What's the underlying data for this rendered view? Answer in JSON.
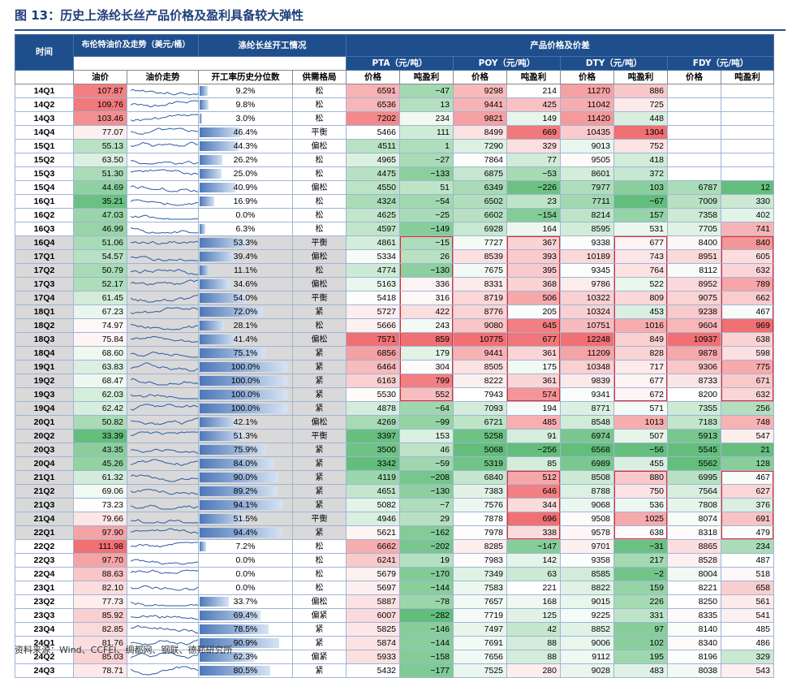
{
  "title": "图 13：历史上涤纶长丝产品价格及盈利具备较大弹性",
  "source": "资料来源：Wind、CCFEI、绸都网、钢联、德邦研究所",
  "headers": {
    "period": "时间",
    "brent_group": "布伦特油价及走势（美元/桶）",
    "operating_group": "涤纶长丝开工情况",
    "products_group": "产品价格及价差",
    "oil_price": "油价",
    "oil_trend": "油价走势",
    "operating_pct": "开工率历史分位数",
    "supply_demand": "供需格局",
    "pta": "PTA（元/吨）",
    "poy": "POY（元/吨）",
    "dty": "DTY（元/吨）",
    "fdy": "FDY（元/吨）",
    "price": "价格",
    "profit": "吨盈利"
  },
  "rows": [
    {
      "period": "14Q1",
      "oil": "107.87",
      "op": "9.2%",
      "sd": "松",
      "pta": "6591",
      "pta_p": "−47",
      "poy": "9298",
      "poy_p": "214",
      "dty": "11270",
      "dty_p": "886",
      "fdy": "",
      "fdy_p": ""
    },
    {
      "period": "14Q2",
      "oil": "109.76",
      "op": "9.8%",
      "sd": "松",
      "pta": "6536",
      "pta_p": "13",
      "poy": "9441",
      "poy_p": "425",
      "dty": "11042",
      "dty_p": "725",
      "fdy": "",
      "fdy_p": ""
    },
    {
      "period": "14Q3",
      "oil": "103.46",
      "op": "3.0%",
      "sd": "松",
      "pta": "7202",
      "pta_p": "234",
      "poy": "9821",
      "poy_p": "149",
      "dty": "11420",
      "dty_p": "448",
      "fdy": "",
      "fdy_p": ""
    },
    {
      "period": "14Q4",
      "oil": "77.07",
      "op": "46.4%",
      "sd": "平衡",
      "pta": "5466",
      "pta_p": "111",
      "poy": "8499",
      "poy_p": "669",
      "dty": "10435",
      "dty_p": "1304",
      "fdy": "",
      "fdy_p": ""
    },
    {
      "period": "15Q1",
      "oil": "55.13",
      "op": "44.3%",
      "sd": "偏松",
      "pta": "4511",
      "pta_p": "1",
      "poy": "7290",
      "poy_p": "329",
      "dty": "9013",
      "dty_p": "752",
      "fdy": "",
      "fdy_p": ""
    },
    {
      "period": "15Q2",
      "oil": "63.50",
      "op": "26.2%",
      "sd": "松",
      "pta": "4965",
      "pta_p": "−27",
      "poy": "7864",
      "poy_p": "77",
      "dty": "9505",
      "dty_p": "418",
      "fdy": "",
      "fdy_p": ""
    },
    {
      "period": "15Q3",
      "oil": "51.30",
      "op": "25.0%",
      "sd": "松",
      "pta": "4475",
      "pta_p": "−133",
      "poy": "6875",
      "poy_p": "−53",
      "dty": "8601",
      "dty_p": "372",
      "fdy": "",
      "fdy_p": ""
    },
    {
      "period": "15Q4",
      "oil": "44.69",
      "op": "40.9%",
      "sd": "偏松",
      "pta": "4550",
      "pta_p": "51",
      "poy": "6349",
      "poy_p": "−226",
      "dty": "7977",
      "dty_p": "103",
      "fdy": "6787",
      "fdy_p": "12"
    },
    {
      "period": "16Q1",
      "oil": "35.21",
      "op": "16.9%",
      "sd": "松",
      "pta": "4324",
      "pta_p": "−54",
      "poy": "6502",
      "poy_p": "23",
      "dty": "7711",
      "dty_p": "−67",
      "fdy": "7009",
      "fdy_p": "330"
    },
    {
      "period": "16Q2",
      "oil": "47.03",
      "op": "0.0%",
      "sd": "松",
      "pta": "4625",
      "pta_p": "−25",
      "poy": "6602",
      "poy_p": "−154",
      "dty": "8214",
      "dty_p": "157",
      "fdy": "7358",
      "fdy_p": "402"
    },
    {
      "period": "16Q3",
      "oil": "46.99",
      "op": "6.3%",
      "sd": "松",
      "pta": "4597",
      "pta_p": "−149",
      "poy": "6928",
      "poy_p": "164",
      "dty": "8595",
      "dty_p": "531",
      "fdy": "7705",
      "fdy_p": "741"
    },
    {
      "period": "16Q4",
      "oil": "51.06",
      "op": "53.3%",
      "sd": "平衡",
      "pta": "4861",
      "pta_p": "−15",
      "poy": "7727",
      "poy_p": "367",
      "dty": "9338",
      "dty_p": "677",
      "fdy": "8400",
      "fdy_p": "840"
    },
    {
      "period": "17Q1",
      "oil": "54.57",
      "op": "39.4%",
      "sd": "偏松",
      "pta": "5334",
      "pta_p": "26",
      "poy": "8539",
      "poy_p": "393",
      "dty": "10189",
      "dty_p": "743",
      "fdy": "8951",
      "fdy_p": "605"
    },
    {
      "period": "17Q2",
      "oil": "50.79",
      "op": "11.1%",
      "sd": "松",
      "pta": "4774",
      "pta_p": "−130",
      "poy": "7675",
      "poy_p": "395",
      "dty": "9345",
      "dty_p": "764",
      "fdy": "8112",
      "fdy_p": "632"
    },
    {
      "period": "17Q3",
      "oil": "52.17",
      "op": "34.6%",
      "sd": "偏松",
      "pta": "5163",
      "pta_p": "336",
      "poy": "8331",
      "poy_p": "368",
      "dty": "9786",
      "dty_p": "522",
      "fdy": "8952",
      "fdy_p": "789"
    },
    {
      "period": "17Q4",
      "oil": "61.45",
      "op": "54.0%",
      "sd": "平衡",
      "pta": "5418",
      "pta_p": "316",
      "poy": "8719",
      "poy_p": "506",
      "dty": "10322",
      "dty_p": "809",
      "fdy": "9075",
      "fdy_p": "662"
    },
    {
      "period": "18Q1",
      "oil": "67.23",
      "op": "72.0%",
      "sd": "紧",
      "pta": "5727",
      "pta_p": "422",
      "poy": "8776",
      "poy_p": "205",
      "dty": "10324",
      "dty_p": "453",
      "fdy": "9238",
      "fdy_p": "467"
    },
    {
      "period": "18Q2",
      "oil": "74.97",
      "op": "28.1%",
      "sd": "松",
      "pta": "5666",
      "pta_p": "243",
      "poy": "9080",
      "poy_p": "645",
      "dty": "10751",
      "dty_p": "1016",
      "fdy": "9604",
      "fdy_p": "969"
    },
    {
      "period": "18Q3",
      "oil": "75.84",
      "op": "41.4%",
      "sd": "偏松",
      "pta": "7571",
      "pta_p": "859",
      "poy": "10775",
      "poy_p": "677",
      "dty": "12248",
      "dty_p": "849",
      "fdy": "10937",
      "fdy_p": "638"
    },
    {
      "period": "18Q4",
      "oil": "68.60",
      "op": "75.1%",
      "sd": "紧",
      "pta": "6856",
      "pta_p": "179",
      "poy": "9441",
      "poy_p": "361",
      "dty": "11209",
      "dty_p": "828",
      "fdy": "9878",
      "fdy_p": "598"
    },
    {
      "period": "19Q1",
      "oil": "63.83",
      "op": "100.0%",
      "sd": "紧",
      "pta": "6464",
      "pta_p": "304",
      "poy": "8505",
      "poy_p": "175",
      "dty": "10348",
      "dty_p": "717",
      "fdy": "9306",
      "fdy_p": "775"
    },
    {
      "period": "19Q2",
      "oil": "68.47",
      "op": "100.0%",
      "sd": "紧",
      "pta": "6163",
      "pta_p": "799",
      "poy": "8222",
      "poy_p": "361",
      "dty": "9839",
      "dty_p": "677",
      "fdy": "8733",
      "fdy_p": "671"
    },
    {
      "period": "19Q3",
      "oil": "62.03",
      "op": "100.0%",
      "sd": "紧",
      "pta": "5530",
      "pta_p": "552",
      "poy": "7943",
      "poy_p": "574",
      "dty": "9341",
      "dty_p": "672",
      "fdy": "8200",
      "fdy_p": "632"
    },
    {
      "period": "19Q4",
      "oil": "62.42",
      "op": "100.0%",
      "sd": "紧",
      "pta": "4878",
      "pta_p": "−64",
      "poy": "7093",
      "poy_p": "194",
      "dty": "8771",
      "dty_p": "571",
      "fdy": "7355",
      "fdy_p": "256"
    },
    {
      "period": "20Q1",
      "oil": "50.82",
      "op": "42.1%",
      "sd": "偏松",
      "pta": "4269",
      "pta_p": "−99",
      "poy": "6721",
      "poy_p": "485",
      "dty": "8548",
      "dty_p": "1013",
      "fdy": "7183",
      "fdy_p": "748"
    },
    {
      "period": "20Q2",
      "oil": "33.39",
      "op": "51.3%",
      "sd": "平衡",
      "pta": "3397",
      "pta_p": "153",
      "poy": "5258",
      "poy_p": "91",
      "dty": "6974",
      "dty_p": "507",
      "fdy": "5913",
      "fdy_p": "547"
    },
    {
      "period": "20Q3",
      "oil": "43.35",
      "op": "75.9%",
      "sd": "紧",
      "pta": "3500",
      "pta_p": "46",
      "poy": "5068",
      "poy_p": "−256",
      "dty": "6568",
      "dty_p": "−56",
      "fdy": "5545",
      "fdy_p": "21"
    },
    {
      "period": "20Q4",
      "oil": "45.26",
      "op": "84.0%",
      "sd": "紧",
      "pta": "3342",
      "pta_p": "−59",
      "poy": "5319",
      "poy_p": "85",
      "dty": "6989",
      "dty_p": "455",
      "fdy": "5562",
      "fdy_p": "128"
    },
    {
      "period": "21Q1",
      "oil": "61.32",
      "op": "90.0%",
      "sd": "紧",
      "pta": "4119",
      "pta_p": "−208",
      "poy": "6840",
      "poy_p": "512",
      "dty": "8508",
      "dty_p": "880",
      "fdy": "6995",
      "fdy_p": "467"
    },
    {
      "period": "21Q2",
      "oil": "69.06",
      "op": "89.2%",
      "sd": "紧",
      "pta": "4651",
      "pta_p": "−130",
      "poy": "7383",
      "poy_p": "646",
      "dty": "8788",
      "dty_p": "750",
      "fdy": "7564",
      "fdy_p": "627"
    },
    {
      "period": "21Q3",
      "oil": "73.23",
      "op": "94.1%",
      "sd": "紧",
      "pta": "5082",
      "pta_p": "−7",
      "poy": "7576",
      "poy_p": "344",
      "dty": "9068",
      "dty_p": "536",
      "fdy": "7808",
      "fdy_p": "376"
    },
    {
      "period": "21Q4",
      "oil": "79.66",
      "op": "51.5%",
      "sd": "平衡",
      "pta": "4946",
      "pta_p": "29",
      "poy": "7878",
      "poy_p": "696",
      "dty": "9508",
      "dty_p": "1025",
      "fdy": "8074",
      "fdy_p": "691"
    },
    {
      "period": "22Q1",
      "oil": "97.90",
      "op": "94.4%",
      "sd": "紧",
      "pta": "5621",
      "pta_p": "−162",
      "poy": "7978",
      "poy_p": "338",
      "dty": "9578",
      "dty_p": "638",
      "fdy": "8318",
      "fdy_p": "479"
    },
    {
      "period": "22Q2",
      "oil": "111.98",
      "op": "7.2%",
      "sd": "松",
      "pta": "6662",
      "pta_p": "−202",
      "poy": "8285",
      "poy_p": "−147",
      "dty": "9701",
      "dty_p": "−31",
      "fdy": "8865",
      "fdy_p": "234"
    },
    {
      "period": "22Q3",
      "oil": "97.70",
      "op": "0.0%",
      "sd": "松",
      "pta": "6241",
      "pta_p": "19",
      "poy": "7983",
      "poy_p": "142",
      "dty": "9358",
      "dty_p": "217",
      "fdy": "8528",
      "fdy_p": "487"
    },
    {
      "period": "22Q4",
      "oil": "88.63",
      "op": "0.0%",
      "sd": "松",
      "pta": "5679",
      "pta_p": "−170",
      "poy": "7349",
      "poy_p": "63",
      "dty": "8585",
      "dty_p": "−2",
      "fdy": "8004",
      "fdy_p": "518"
    },
    {
      "period": "23Q1",
      "oil": "82.10",
      "op": "0.0%",
      "sd": "松",
      "pta": "5697",
      "pta_p": "−144",
      "poy": "7583",
      "poy_p": "221",
      "dty": "8822",
      "dty_p": "159",
      "fdy": "8221",
      "fdy_p": "658"
    },
    {
      "period": "23Q2",
      "oil": "77.73",
      "op": "33.7%",
      "sd": "偏松",
      "pta": "5887",
      "pta_p": "−78",
      "poy": "7657",
      "poy_p": "168",
      "dty": "9015",
      "dty_p": "226",
      "fdy": "8250",
      "fdy_p": "561"
    },
    {
      "period": "23Q3",
      "oil": "85.92",
      "op": "69.4%",
      "sd": "偏紧",
      "pta": "6007",
      "pta_p": "−282",
      "poy": "7719",
      "poy_p": "125",
      "dty": "9225",
      "dty_p": "331",
      "fdy": "8335",
      "fdy_p": "541"
    },
    {
      "period": "23Q4",
      "oil": "82.85",
      "op": "78.5%",
      "sd": "紧",
      "pta": "5825",
      "pta_p": "−146",
      "poy": "7497",
      "poy_p": "42",
      "dty": "8852",
      "dty_p": "97",
      "fdy": "8140",
      "fdy_p": "485"
    },
    {
      "period": "24Q1",
      "oil": "81.76",
      "op": "90.9%",
      "sd": "紧",
      "pta": "5874",
      "pta_p": "−144",
      "poy": "7691",
      "poy_p": "88",
      "dty": "9006",
      "dty_p": "102",
      "fdy": "8340",
      "fdy_p": "486"
    },
    {
      "period": "24Q2",
      "oil": "85.03",
      "op": "62.3%",
      "sd": "偏紧",
      "pta": "5933",
      "pta_p": "−158",
      "poy": "7656",
      "poy_p": "88",
      "dty": "9112",
      "dty_p": "195",
      "fdy": "8196",
      "fdy_p": "329"
    },
    {
      "period": "24Q3",
      "oil": "78.71",
      "op": "80.5%",
      "sd": "紧",
      "pta": "5432",
      "pta_p": "−177",
      "poy": "7525",
      "poy_p": "280",
      "dty": "9028",
      "dty_p": "483",
      "fdy": "8038",
      "fdy_p": "543"
    }
  ],
  "colors": {
    "header_bg": "#1f4e8c",
    "title_color": "#1f3e7a",
    "highlight_border": "#e8262b",
    "grey_row": "#d9d9d9",
    "bar_start": "#4d78b9",
    "bar_end": "#d6e3f4"
  }
}
